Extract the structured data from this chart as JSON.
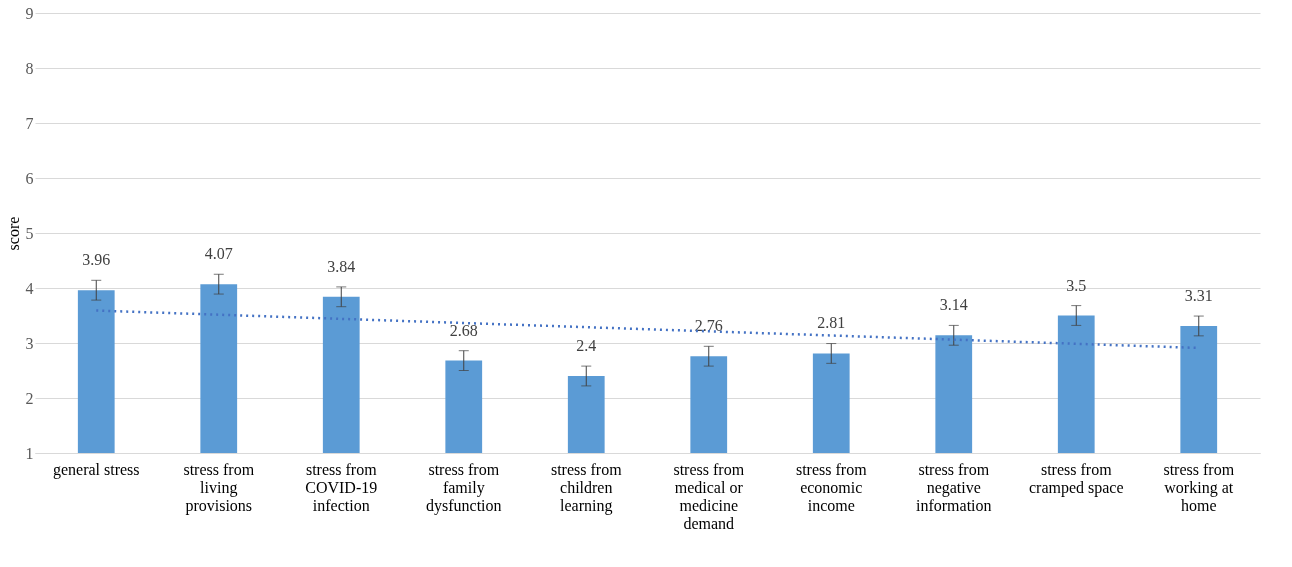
{
  "chart_data": {
    "type": "bar",
    "ylabel": "score",
    "categories": [
      "general stress",
      "stress from living provisions",
      "stress from COVID-19 infection",
      "stress from family dysfunction",
      "stress from children learning",
      "stress from medical or medicine demand",
      "stress from economic income",
      "stress from negative information",
      "stress from cramped space",
      "stress from working at home"
    ],
    "series": [
      {
        "color": "#5b9bd5",
        "values": [
          3.96,
          4.07,
          3.84,
          2.68,
          2.4,
          2.76,
          2.81,
          3.14,
          3.5,
          3.31
        ],
        "value_labels": [
          "3.96",
          "4.07",
          "3.84",
          "2.68",
          "2.4",
          "2.76",
          "2.81",
          "3.14",
          "3.5",
          "3.31"
        ],
        "errors": [
          0.18,
          0.18,
          0.18,
          0.18,
          0.18,
          0.18,
          0.18,
          0.18,
          0.18,
          0.18
        ]
      },
      {
        "type": "line",
        "color": "#4472c4",
        "line_style": "dotted",
        "x": [
          "general stress",
          "stress from working at home"
        ],
        "values": [
          3.59,
          2.91
        ]
      }
    ],
    "ylim": [
      1,
      9
    ],
    "yticks": [
      1,
      2,
      3,
      4,
      5,
      6,
      7,
      8,
      9
    ],
    "grid": "y"
  }
}
